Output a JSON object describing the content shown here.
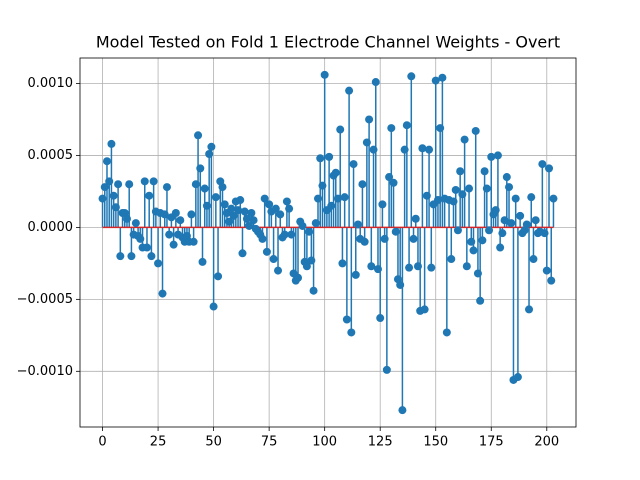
{
  "chart_data": {
    "type": "stem",
    "title": "Model Tested on Fold 1 Electrode Channel Weights - Overt",
    "x": [
      0,
      1,
      2,
      3,
      4,
      5,
      6,
      7,
      8,
      9,
      10,
      11,
      12,
      13,
      14,
      15,
      16,
      17,
      18,
      19,
      20,
      21,
      22,
      23,
      24,
      25,
      26,
      27,
      28,
      29,
      30,
      31,
      32,
      33,
      34,
      35,
      36,
      37,
      38,
      39,
      40,
      41,
      42,
      43,
      44,
      45,
      46,
      47,
      48,
      49,
      50,
      51,
      52,
      53,
      54,
      55,
      56,
      57,
      58,
      59,
      60,
      61,
      62,
      63,
      64,
      65,
      66,
      67,
      68,
      69,
      70,
      71,
      72,
      73,
      74,
      75,
      76,
      77,
      78,
      79,
      80,
      81,
      82,
      83,
      84,
      85,
      86,
      87,
      88,
      89,
      90,
      91,
      92,
      93,
      94,
      95,
      96,
      97,
      98,
      99,
      100,
      101,
      102,
      103,
      104,
      105,
      106,
      107,
      108,
      109,
      110,
      111,
      112,
      113,
      114,
      115,
      116,
      117,
      118,
      119,
      120,
      121,
      122,
      123,
      124,
      125,
      126,
      127,
      128,
      129,
      130,
      131,
      132,
      133,
      134,
      135,
      136,
      137,
      138,
      139,
      140,
      141,
      142,
      143,
      144,
      145,
      146,
      147,
      148,
      149,
      150,
      151,
      152,
      153,
      154,
      155,
      156,
      157,
      158,
      159,
      160,
      161,
      162,
      163,
      164,
      165,
      166,
      167,
      168,
      169,
      170,
      171,
      172,
      173,
      174,
      175,
      176,
      177,
      178,
      179,
      180,
      181,
      182,
      183,
      184,
      185,
      186,
      187,
      188,
      189,
      190,
      191,
      192,
      193,
      194,
      195,
      196,
      197,
      198,
      199,
      200,
      201,
      202,
      203
    ],
    "values": [
      0.0002,
      0.00028,
      0.00046,
      0.00032,
      0.00058,
      0.00022,
      0.00014,
      0.0003,
      -0.0002,
      0.0001,
      0.0001,
      6e-05,
      0.0003,
      -0.0002,
      -5e-05,
      3e-05,
      -6e-05,
      -8e-05,
      -0.00014,
      0.00032,
      -0.00014,
      0.00022,
      -0.0002,
      0.00032,
      0.00011,
      -0.00025,
      0.0001,
      -0.00046,
      9e-05,
      0.00028,
      -5e-05,
      7e-05,
      -0.00012,
      0.0001,
      -5e-05,
      5e-05,
      -7e-05,
      -0.0001,
      -6e-05,
      -0.0001,
      9e-05,
      -0.0001,
      0.0003,
      0.00064,
      0.00041,
      -0.00024,
      0.00027,
      0.00015,
      0.00051,
      0.00056,
      -0.00055,
      0.00021,
      -0.00034,
      0.00032,
      0.00028,
      0.00016,
      0.0001,
      4e-05,
      0.00013,
      8e-05,
      0.00018,
      0.00012,
      0.00019,
      -0.00018,
      0.00011,
      6e-05,
      1e-05,
      0.0001,
      5e-05,
      -1e-05,
      -3e-05,
      -5e-05,
      -8e-05,
      0.0002,
      -0.00017,
      0.00016,
      0.00011,
      -0.00022,
      0.00013,
      -0.0003,
      9e-05,
      -7e-05,
      -5e-05,
      0.00018,
      0.00013,
      -5e-05,
      -0.00032,
      -0.00037,
      -0.00035,
      4e-05,
      1e-05,
      -0.00024,
      -0.00027,
      -3e-05,
      -0.00023,
      -0.00044,
      3e-05,
      0.0002,
      0.00048,
      0.00029,
      0.00106,
      0.00012,
      0.00049,
      0.00015,
      0.00036,
      0.00038,
      0.0002,
      0.00068,
      -0.00025,
      0.00021,
      -0.00064,
      0.00095,
      -0.00073,
      0.00044,
      -0.00033,
      2e-05,
      -8e-05,
      0.0003,
      -0.0001,
      0.00059,
      0.00075,
      -0.00027,
      0.00054,
      0.00101,
      -0.00029,
      -0.00063,
      0.00016,
      -8e-05,
      -0.00099,
      0.00035,
      0.00069,
      0.00031,
      -3e-05,
      -0.00036,
      -0.0004,
      -0.00127,
      0.00054,
      0.00071,
      -0.00028,
      0.00105,
      -8e-05,
      6e-05,
      -0.00027,
      -0.00058,
      0.00055,
      -0.00057,
      0.00022,
      0.00054,
      -0.00028,
      0.00016,
      0.00102,
      0.00019,
      0.00069,
      0.00104,
      0.0002,
      -0.00073,
      0.00019,
      -0.00022,
      0.00018,
      0.00026,
      -2e-05,
      0.00039,
      0.00023,
      0.00061,
      -0.00027,
      0.00027,
      -0.0001,
      -0.00016,
      0.00067,
      -0.00032,
      -0.00051,
      -9e-05,
      0.00039,
      0.00027,
      -2e-05,
      0.00049,
      9e-05,
      0.00012,
      0.0005,
      -0.00014,
      -4e-05,
      5e-05,
      0.00035,
      0.00028,
      3e-05,
      -0.00106,
      0.0002,
      -0.00104,
      8e-05,
      -4e-05,
      -2e-05,
      2e-05,
      -0.00057,
      0.00021,
      -0.00022,
      5e-05,
      -4e-05,
      -3e-05,
      0.00044,
      -4e-05,
      -0.0003,
      0.00041,
      -0.00037,
      0.0002
    ],
    "color": "#1f77b4",
    "baseline_color": "#d62728",
    "xlim": [
      -10.15,
      213.15
    ],
    "xticks": [
      0,
      25,
      50,
      75,
      100,
      125,
      150,
      175,
      200
    ],
    "ylim": [
      -0.001387,
      0.001177
    ],
    "yticks": [
      {
        "value": -0.001,
        "label": "−0.0010"
      },
      {
        "value": -0.0005,
        "label": "−0.0005"
      },
      {
        "value": 0,
        "label": "0.0000"
      },
      {
        "value": 0.0005,
        "label": "0.0005"
      },
      {
        "value": 0.001,
        "label": "0.0010"
      }
    ],
    "grid": true
  }
}
